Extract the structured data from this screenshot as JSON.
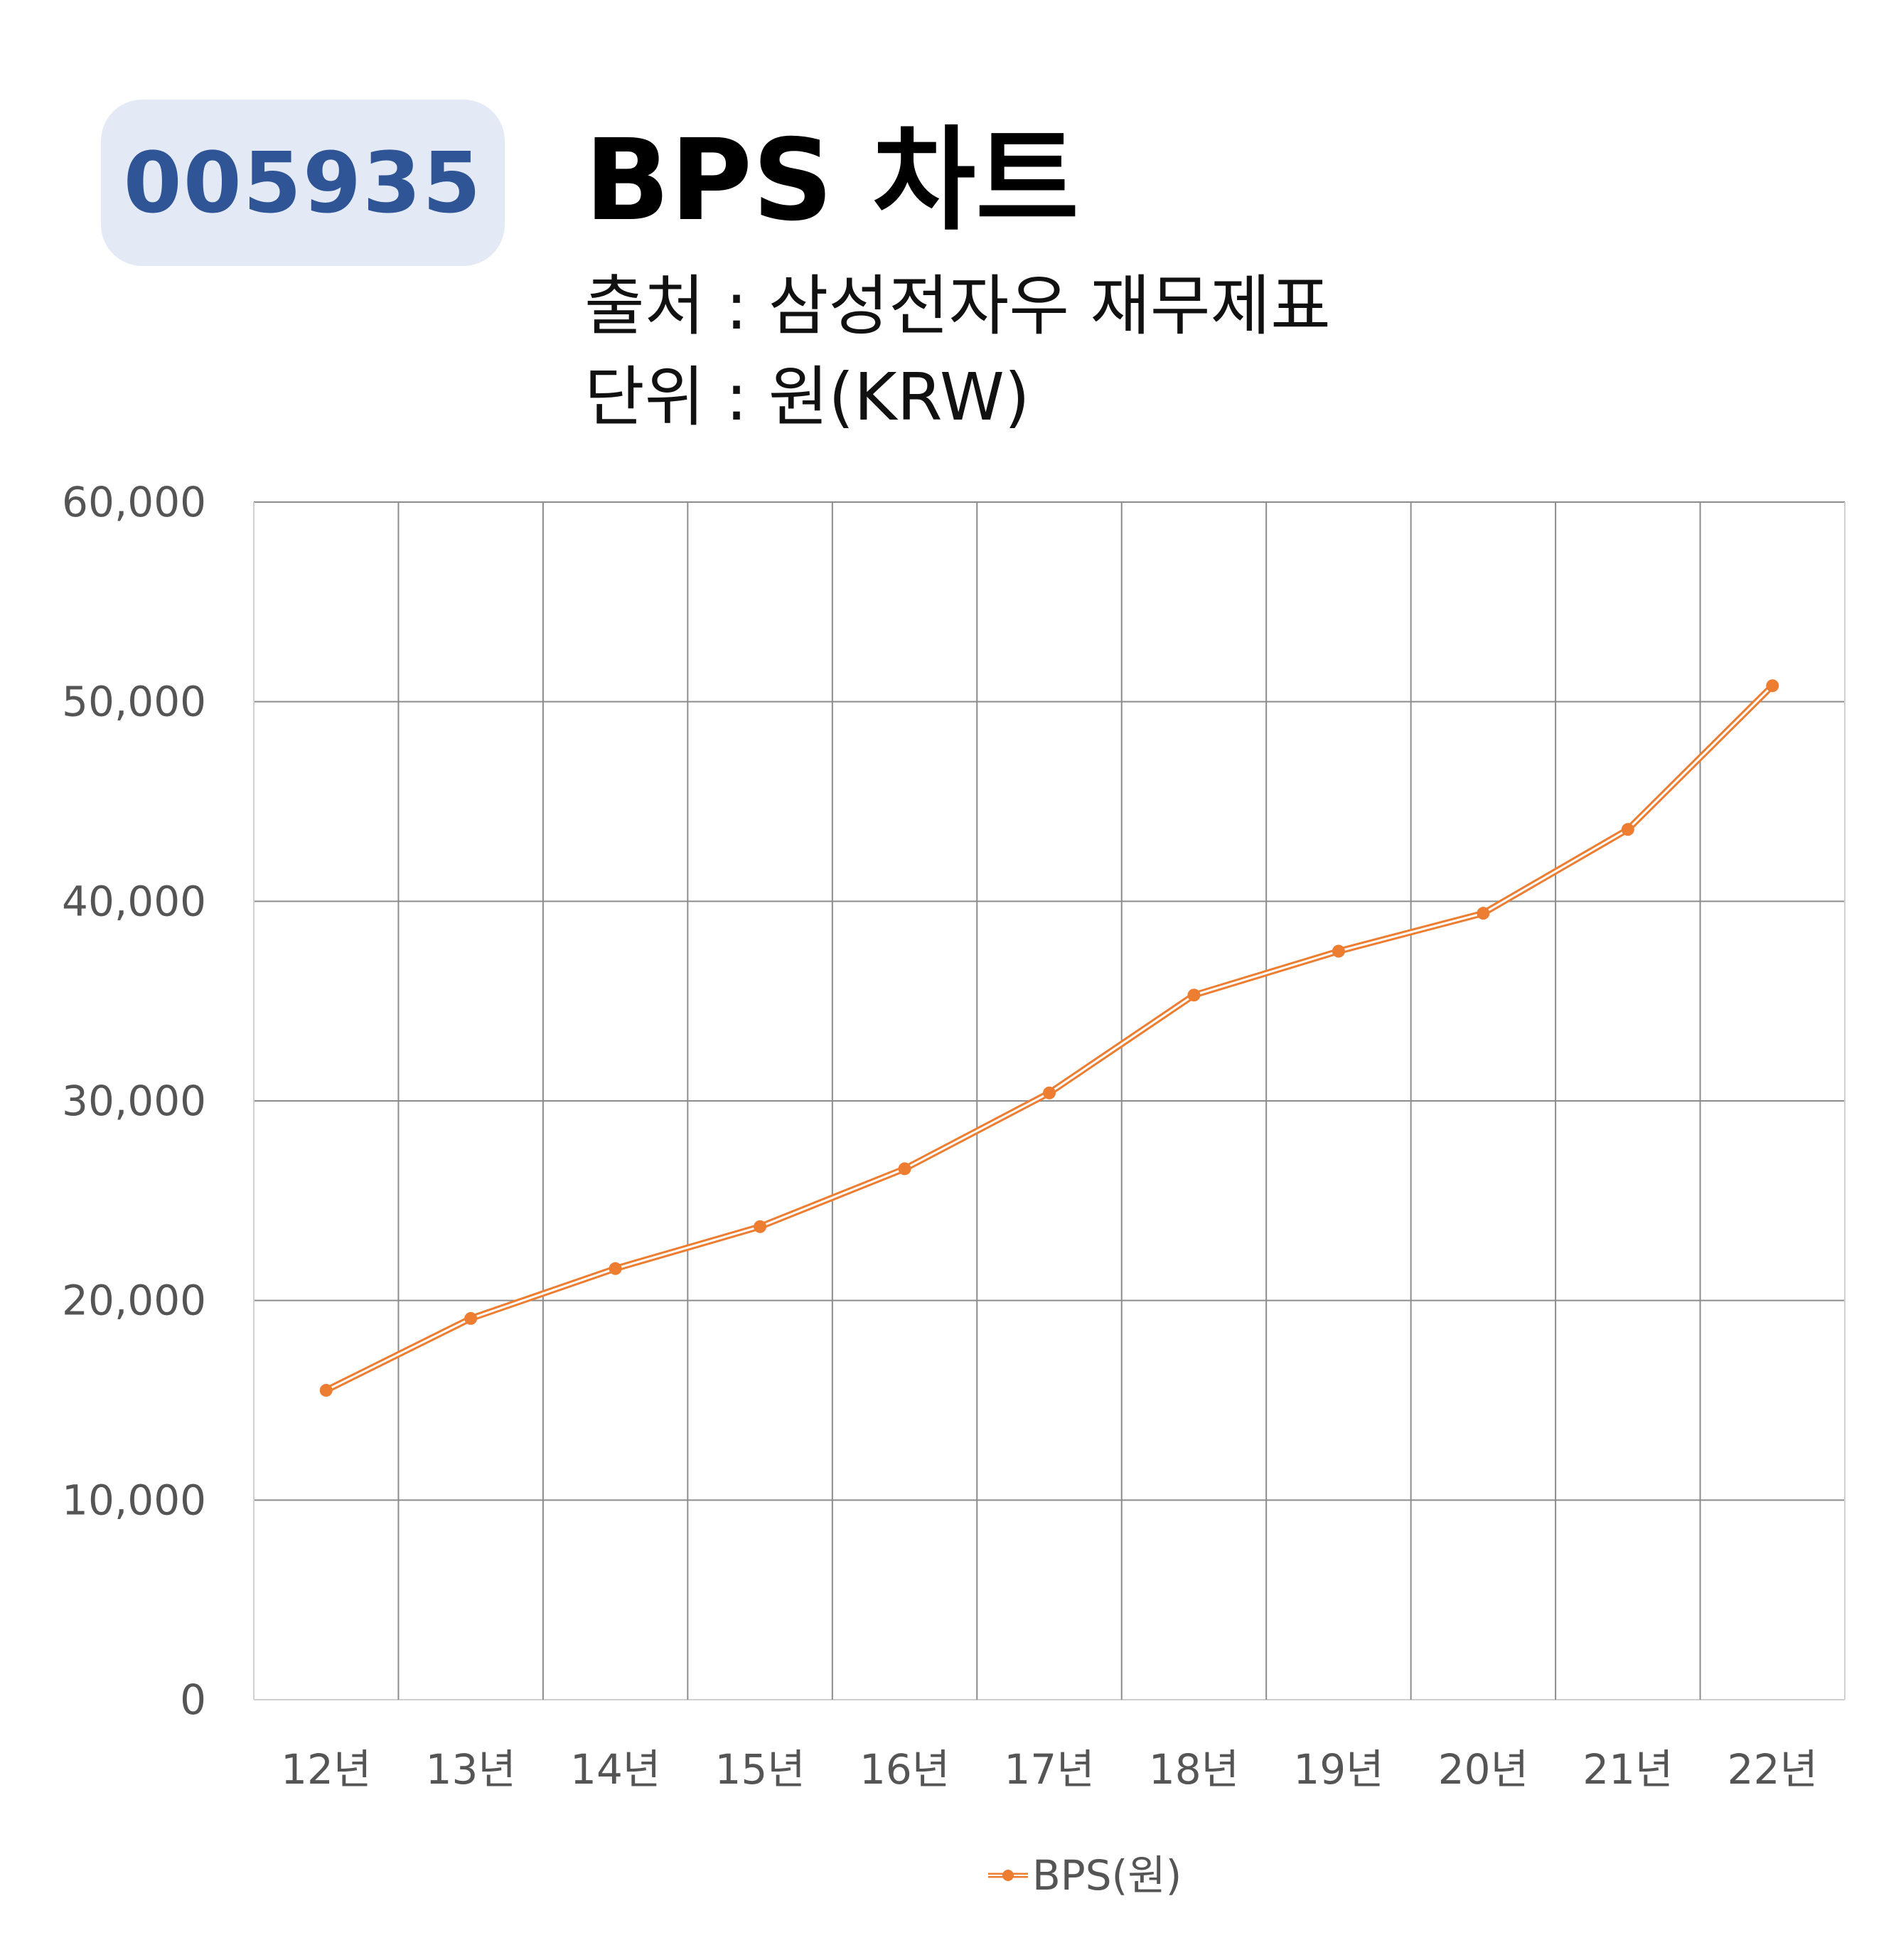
{
  "header": {
    "code": "005935",
    "title": "BPS 차트",
    "source_line": "출처 : 삼성전자우 재무제표",
    "unit_line": "단위 : 원(KRW)"
  },
  "colors": {
    "line": "#ed7d31",
    "badge_bg": "#e4eaf5",
    "badge_text": "#2f5597",
    "grid": "#8c8c8c"
  },
  "chart_data": {
    "type": "line",
    "categories": [
      "12년",
      "13년",
      "14년",
      "15년",
      "16년",
      "17년",
      "18년",
      "19년",
      "20년",
      "21년",
      "22년"
    ],
    "series": [
      {
        "name": "BPS(원)",
        "values": [
          15500,
          19100,
          21600,
          23700,
          26600,
          30400,
          35300,
          37500,
          39400,
          43600,
          50800
        ]
      }
    ],
    "y_ticks": [
      "0",
      "10,000",
      "20,000",
      "30,000",
      "40,000",
      "50,000",
      "60,000"
    ],
    "ylim": [
      0,
      60000
    ],
    "grid": true,
    "legend": "bottom"
  }
}
